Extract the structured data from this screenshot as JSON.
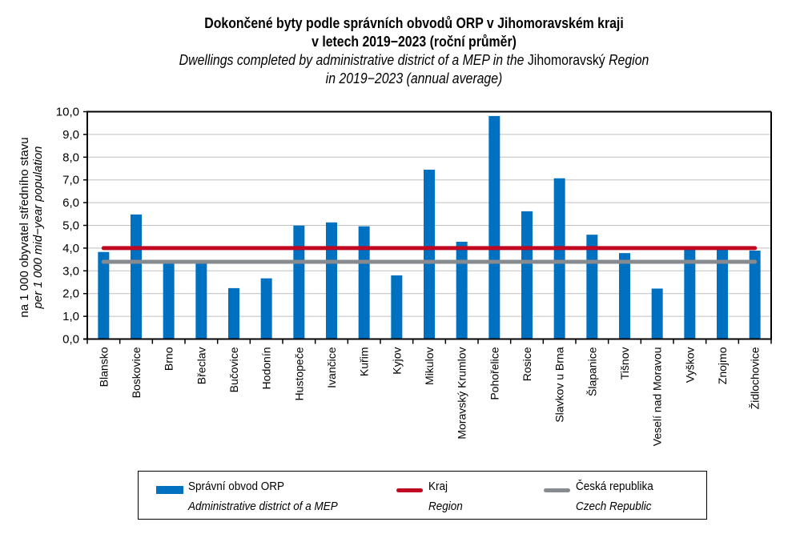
{
  "title": {
    "cz_line1": "Dokončené byty podle správních obvodů ORP v Jihomoravském kraji",
    "cz_line2": "v letech 2019−2023 (roční průměr)",
    "en_line1_a": "Dwellings completed by administrative district of a MEP in the ",
    "en_line1_b": "Jihomoravský",
    "en_line1_c": " Region",
    "en_line2": "in 2019−2023 (annual average)"
  },
  "chart_data": {
    "type": "bar",
    "title": "Dokončené byty podle správních obvodů ORP v Jihomoravském kraji v letech 2019−2023 (roční průměr) / Dwellings completed by administrative district of a MEP in the Jihomoravský Region in 2019−2023 (annual average)",
    "xlabel": "",
    "ylabel": "na 1 000 obyvatel středního stavu / per 1 000 mid−year population",
    "ylabel_cz": "na 1 000 obyvatel středního stavu",
    "ylabel_en": "per 1 000 mid−year population",
    "ylim": [
      0,
      10
    ],
    "yticks": [
      0,
      1,
      2,
      3,
      4,
      5,
      6,
      7,
      8,
      9,
      10
    ],
    "ytick_labels": [
      "0,0",
      "1,0",
      "2,0",
      "3,0",
      "4,0",
      "5,0",
      "6,0",
      "7,0",
      "8,0",
      "9,0",
      "10,0"
    ],
    "grid": true,
    "categories": [
      "Blansko",
      "Boskovice",
      "Brno",
      "Břeclav",
      "Bučovice",
      "Hodonín",
      "Hustopeče",
      "Ivančice",
      "Kuřim",
      "Kyjov",
      "Mikulov",
      "Moravský Krumlov",
      "Pohořelice",
      "Rosice",
      "Slavkov u Brna",
      "Šlapanice",
      "Tišnov",
      "Veselí nad Moravou",
      "Vyškov",
      "Znojmo",
      "Židlochovice"
    ],
    "series": [
      {
        "name": "Správní obvod ORP",
        "name_en": "Administrative district of a MEP",
        "kind": "bar",
        "color": "#0070C0",
        "values": [
          3.83,
          5.48,
          3.35,
          3.35,
          2.24,
          2.67,
          4.99,
          5.13,
          4.96,
          2.8,
          7.45,
          4.28,
          9.81,
          5.62,
          7.07,
          4.59,
          3.78,
          2.22,
          3.95,
          3.96,
          3.89
        ]
      },
      {
        "name": "Kraj",
        "name_en": "Region",
        "kind": "line",
        "color": "#C00820",
        "values": [
          4.0,
          4.0,
          4.0,
          4.0,
          4.0,
          4.0,
          4.0,
          4.0,
          4.0,
          4.0,
          4.0,
          4.0,
          4.0,
          4.0,
          4.0,
          4.0,
          4.0,
          4.0,
          4.0,
          4.0,
          4.0
        ]
      },
      {
        "name": "Česká republika",
        "name_en": "Czech Republic",
        "kind": "line",
        "color": "#878A8E",
        "values": [
          3.4,
          3.4,
          3.4,
          3.4,
          3.4,
          3.4,
          3.4,
          3.4,
          3.4,
          3.4,
          3.4,
          3.4,
          3.4,
          3.4,
          3.4,
          3.4,
          3.4,
          3.4,
          3.4,
          3.4,
          3.4
        ]
      }
    ],
    "legend_position": "bottom"
  },
  "legend": {
    "items": [
      {
        "label": "Správní obvod ORP",
        "label_en": "Administrative district of a MEP",
        "color": "#0070C0"
      },
      {
        "label": "Kraj",
        "label_en": "Region",
        "color": "#C00820"
      },
      {
        "label": "Česká republika",
        "label_en": "Czech Republic",
        "color": "#878A8E"
      }
    ]
  },
  "colors": {
    "gridline": "#BFBFBF",
    "axis": "#000000"
  }
}
